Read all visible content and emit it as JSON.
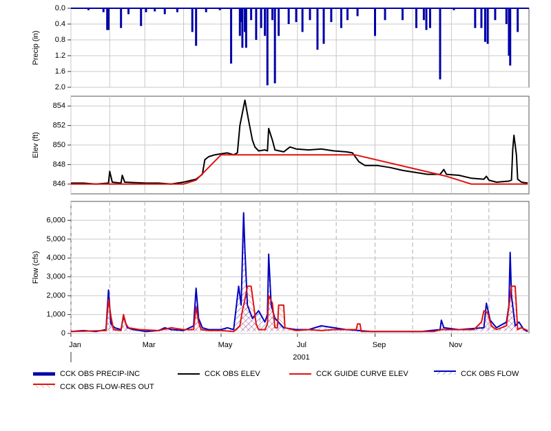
{
  "chart_data": [
    {
      "type": "bar",
      "ylabel": "Precip (in)",
      "inverted": true,
      "xlim": [
        0,
        366
      ],
      "ylim": [
        0,
        2
      ],
      "yticks": [
        {
          "value": 0,
          "label": "0.0"
        },
        0.4,
        0.8,
        1.2,
        1.6,
        {
          "value": 2,
          "label": "2.0"
        }
      ],
      "xgrid": [
        0,
        31,
        59,
        90,
        120,
        151,
        181,
        212,
        243,
        273,
        304,
        334
      ],
      "series": [
        {
          "name": "CCK OBS PRECIP-INC",
          "color": "#0000a8",
          "x": [
            14,
            26,
            29,
            30,
            40,
            46,
            56,
            60,
            67,
            75,
            85,
            97,
            100,
            108,
            119,
            128,
            135,
            136,
            137,
            139,
            140,
            144,
            148,
            152,
            155,
            157,
            161,
            163,
            166,
            174,
            180,
            185,
            191,
            197,
            202,
            208,
            216,
            221,
            229,
            243,
            251,
            265,
            276,
            282,
            284,
            287,
            295,
            306,
            323,
            328,
            331,
            333,
            339,
            348,
            350,
            351,
            357
          ],
          "values": [
            0.05,
            0.1,
            0.55,
            0.55,
            0.5,
            0.15,
            0.45,
            0.1,
            0.08,
            0.15,
            0.1,
            0.6,
            0.95,
            0.1,
            0.05,
            1.4,
            0.7,
            0.35,
            1.0,
            0.6,
            1.0,
            0.3,
            0.8,
            0.5,
            0.7,
            1.95,
            0.3,
            1.9,
            0.7,
            0.4,
            0.35,
            0.6,
            0.3,
            1.05,
            0.9,
            0.35,
            0.5,
            0.3,
            0.2,
            0.7,
            0.3,
            0.3,
            0.5,
            0.3,
            0.55,
            0.5,
            1.8,
            0.05,
            0.5,
            0.5,
            0.85,
            0.9,
            0.3,
            0.4,
            1.2,
            1.45,
            0.6
          ]
        }
      ]
    },
    {
      "type": "line",
      "ylabel": "Elev (ft)",
      "xlim": [
        0,
        366
      ],
      "ylim": [
        845,
        855
      ],
      "yticks": [
        846,
        848,
        850,
        852,
        854
      ],
      "xgrid": [
        0,
        31,
        59,
        90,
        120,
        151,
        181,
        212,
        243,
        273,
        304,
        334
      ],
      "series": [
        {
          "name": "CCK OBS ELEV",
          "color": "#000000",
          "x": [
            0,
            10,
            20,
            30,
            31,
            33,
            40,
            41,
            43,
            60,
            70,
            80,
            90,
            100,
            105,
            107,
            110,
            115,
            120,
            125,
            130,
            133,
            135,
            139,
            142,
            145,
            147,
            150,
            155,
            157,
            158,
            161,
            163,
            170,
            175,
            180,
            190,
            200,
            210,
            220,
            225,
            230,
            235,
            245,
            255,
            265,
            275,
            285,
            295,
            298,
            300,
            310,
            320,
            330,
            332,
            334,
            340,
            350,
            352,
            353,
            354,
            356,
            357,
            360,
            365
          ],
          "values": [
            846.1,
            846.1,
            846.0,
            846.1,
            847.3,
            846.2,
            846.1,
            846.9,
            846.2,
            846.1,
            846.1,
            846.0,
            846.2,
            846.5,
            847.0,
            848.5,
            848.8,
            849.0,
            849.1,
            849.2,
            849.0,
            849.2,
            852.0,
            854.6,
            852.5,
            850.5,
            849.8,
            849.4,
            849.5,
            849.4,
            851.7,
            850.5,
            849.5,
            849.3,
            849.8,
            849.6,
            849.5,
            849.6,
            849.4,
            849.3,
            849.2,
            848.3,
            847.9,
            847.9,
            847.7,
            847.4,
            847.2,
            847.0,
            847.0,
            847.5,
            847.0,
            846.9,
            846.6,
            846.5,
            846.8,
            846.4,
            846.2,
            846.3,
            846.4,
            849.5,
            851.0,
            849.0,
            846.5,
            846.2,
            846.1
          ]
        },
        {
          "name": "CCK GUIDE CURVE ELEV",
          "color": "#e01010",
          "x": [
            0,
            90,
            100,
            120,
            227,
            300,
            320,
            365
          ],
          "values": [
            846.0,
            846.0,
            846.4,
            849.0,
            849.0,
            846.8,
            846.0,
            846.0
          ]
        }
      ]
    },
    {
      "type": "line",
      "ylabel": "Flow (cfs)",
      "xlabel": "2001",
      "xlim": [
        0,
        366
      ],
      "ylim": [
        0,
        7000
      ],
      "yticks": [
        0,
        {
          "value": 1000,
          "label": "1,000"
        },
        {
          "value": 2000,
          "label": "2,000"
        },
        {
          "value": 3000,
          "label": "3,000"
        },
        {
          "value": 4000,
          "label": "4,000"
        },
        {
          "value": 5000,
          "label": "5,000"
        },
        {
          "value": 6000,
          "label": "6,000"
        }
      ],
      "xticks": [
        {
          "value": 0,
          "label": "Jan"
        },
        {
          "value": 59,
          "label": "Mar"
        },
        {
          "value": 120,
          "label": "May"
        },
        {
          "value": 181,
          "label": "Jul"
        },
        {
          "value": 243,
          "label": "Sep"
        },
        {
          "value": 304,
          "label": "Nov"
        }
      ],
      "xminor": [
        31,
        90,
        151,
        212,
        273,
        334
      ],
      "series": [
        {
          "name": "CCK OBS FLOW",
          "color": "#0000c0",
          "hatch": true,
          "x": [
            0,
            10,
            20,
            28,
            30,
            32,
            35,
            40,
            42,
            45,
            50,
            55,
            60,
            70,
            75,
            80,
            90,
            98,
            100,
            102,
            105,
            110,
            120,
            125,
            130,
            134,
            136,
            138,
            139,
            141,
            145,
            150,
            155,
            157,
            158,
            160,
            163,
            170,
            180,
            190,
            200,
            210,
            220,
            230,
            240,
            260,
            280,
            295,
            296,
            298,
            310,
            330,
            332,
            335,
            340,
            348,
            350,
            351,
            352,
            355,
            358,
            362,
            365
          ],
          "values": [
            100,
            150,
            100,
            200,
            2300,
            500,
            300,
            200,
            900,
            300,
            200,
            150,
            100,
            150,
            300,
            200,
            150,
            400,
            2400,
            800,
            300,
            200,
            200,
            300,
            200,
            2500,
            1500,
            6400,
            4400,
            1500,
            800,
            1200,
            600,
            1000,
            4200,
            1500,
            800,
            300,
            200,
            200,
            400,
            300,
            200,
            150,
            100,
            100,
            100,
            200,
            700,
            300,
            200,
            300,
            1600,
            700,
            300,
            600,
            1500,
            4300,
            2000,
            400,
            600,
            200,
            100
          ]
        },
        {
          "name": "CCK OBS FLOW-RES OUT",
          "color": "#e01010",
          "hatch": true,
          "x": [
            0,
            28,
            30,
            32,
            34,
            40,
            42,
            44,
            46,
            55,
            70,
            80,
            90,
            98,
            100,
            102,
            104,
            110,
            120,
            130,
            135,
            137,
            139,
            141,
            144,
            146,
            148,
            150,
            155,
            157,
            158,
            161,
            163,
            165,
            166,
            170,
            171,
            180,
            190,
            200,
            210,
            228,
            229,
            231,
            232,
            250,
            270,
            290,
            296,
            310,
            322,
            328,
            330,
            333,
            336,
            340,
            348,
            352,
            355,
            357,
            360,
            365
          ],
          "values": [
            100,
            150,
            1800,
            900,
            200,
            150,
            1000,
            500,
            300,
            200,
            150,
            300,
            200,
            200,
            1400,
            600,
            200,
            150,
            150,
            100,
            400,
            1200,
            1800,
            2500,
            2500,
            1500,
            500,
            200,
            200,
            500,
            2000,
            1600,
            300,
            300,
            1500,
            1500,
            300,
            150,
            200,
            150,
            200,
            200,
            500,
            500,
            100,
            100,
            100,
            100,
            200,
            200,
            200,
            600,
            1200,
            1100,
            400,
            200,
            400,
            2500,
            2500,
            200,
            300,
            150
          ]
        }
      ]
    }
  ]
}
